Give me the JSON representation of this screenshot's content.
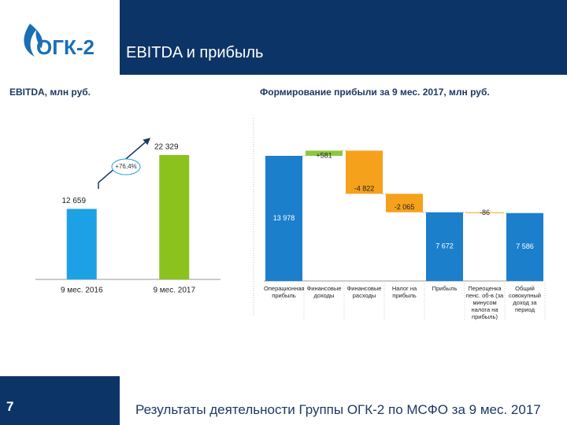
{
  "header": {
    "title": "EBITDA и прибыль",
    "logo": "ОГК-2"
  },
  "chart_data": [
    {
      "type": "bar",
      "title": "EBITDA, млн руб.",
      "categories": [
        "9 мес. 2016",
        "9 мес. 2017"
      ],
      "values": [
        12659,
        22329
      ],
      "value_labels": [
        "12 659",
        "22 329"
      ],
      "colors": [
        "#1da1e6",
        "#8cc21e"
      ],
      "annotation": "+76,4%"
    },
    {
      "type": "waterfall",
      "title": "Формирование прибыли за 9 мес. 2017, млн руб.",
      "categories": [
        "Операционная прибыль",
        "Финансовые доходы",
        "Финансовые расходы",
        "Налог на прибыль",
        "Прибыль",
        "Переоценка пенс. об-в (за минусом налога на прибыль)",
        "Общий совокупный доход за период"
      ],
      "values": [
        13978,
        581,
        -4822,
        -2065,
        7672,
        -86,
        7586
      ],
      "value_labels": [
        "13 978",
        "+581",
        "-4 822",
        "-2 065",
        "7 672",
        "-86",
        "7 586"
      ],
      "colors": {
        "total": "#1b7fcc",
        "increase": "#8dc63f",
        "decrease": "#f5a11c"
      }
    }
  ],
  "footer": {
    "page": "7",
    "text": "Результаты деятельности Группы ОГК-2 по МСФО за 9 мес. 2017"
  }
}
